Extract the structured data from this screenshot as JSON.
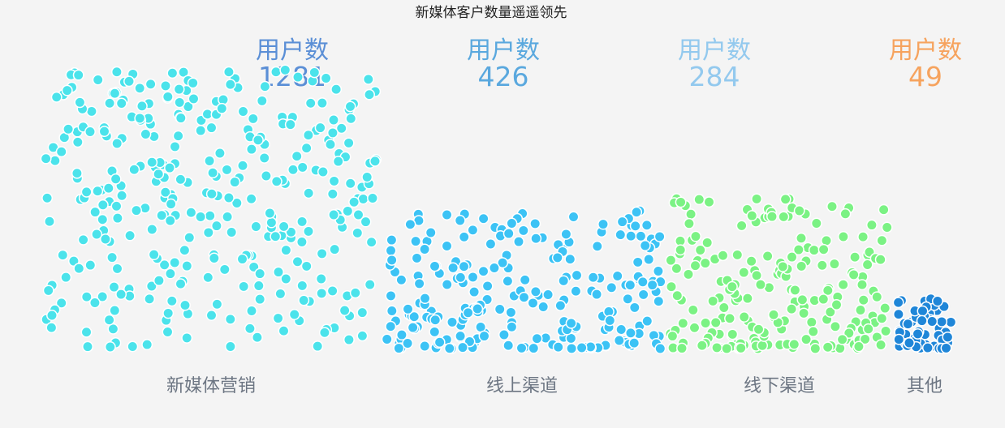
{
  "chart_data": {
    "type": "scatter",
    "title": "新媒体客户数量遥遥领先",
    "stat_label": "用户数",
    "categories": [
      "新媒体营销",
      "线上渠道",
      "线下渠道",
      "其他"
    ],
    "values": [
      1281,
      426,
      284,
      49
    ],
    "colors": [
      "#4be3eb",
      "#3cc3f5",
      "#7bf284",
      "#1f86d8"
    ],
    "value_colors": [
      "#5b8fd6",
      "#5aa8de",
      "#93c9ee",
      "#f6a35e"
    ],
    "grid": false,
    "legend": "none"
  }
}
